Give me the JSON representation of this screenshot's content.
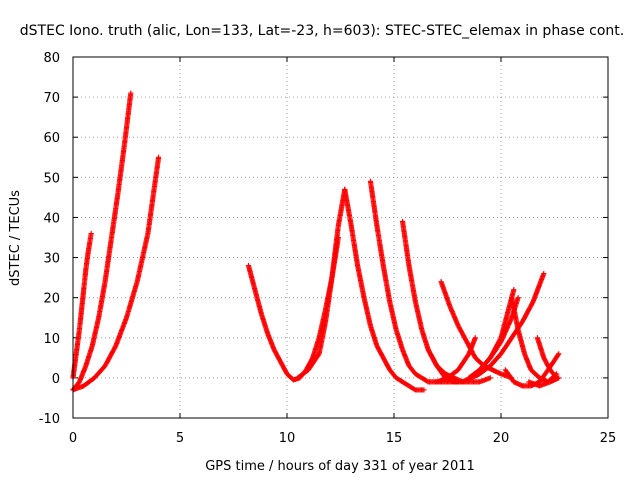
{
  "chart_data": {
    "type": "scatter",
    "title": "dSTEC Iono. truth (alic, Lon=133, Lat=-23, h=603): STEC-STEC_elemax in phase cont.",
    "xlabel": "GPS time / hours of day 331 of year 2011",
    "ylabel": "dSTEC  / TECUs",
    "xlim": [
      0,
      25
    ],
    "ylim": [
      -10,
      80
    ],
    "xticks": [
      0,
      5,
      10,
      15,
      20,
      25
    ],
    "yticks": [
      -10,
      0,
      10,
      20,
      30,
      40,
      50,
      60,
      70,
      80
    ],
    "grid": true,
    "marker": "+",
    "color": "#ff0000",
    "arcs": [
      {
        "x": [
          0.0,
          0.1,
          0.2,
          0.3,
          0.4,
          0.5,
          0.6,
          0.7,
          0.85
        ],
        "y": [
          0,
          4,
          8,
          12,
          17,
          22,
          27,
          31,
          36
        ]
      },
      {
        "x": [
          0.0,
          0.3,
          0.6,
          0.9,
          1.2,
          1.5,
          1.8,
          2.1,
          2.4,
          2.7
        ],
        "y": [
          -3,
          -1,
          3,
          8,
          15,
          24,
          35,
          46,
          58,
          71
        ]
      },
      {
        "x": [
          0.0,
          0.5,
          1.0,
          1.5,
          2.0,
          2.5,
          3.0,
          3.5,
          4.0
        ],
        "y": [
          -3,
          -2,
          0,
          3,
          8,
          15,
          24,
          36,
          55
        ]
      },
      {
        "x": [
          8.2,
          8.5,
          8.8,
          9.1,
          9.4,
          9.7,
          10.0,
          10.3,
          10.6,
          10.9,
          11.2,
          11.5,
          11.8,
          12.1,
          12.4
        ],
        "y": [
          28,
          22,
          16,
          11,
          7,
          4,
          1,
          -0.5,
          0,
          2,
          5,
          10,
          17,
          25,
          35
        ]
      },
      {
        "x": [
          10.5,
          11.0,
          11.5,
          11.8,
          12.1,
          12.4,
          12.7
        ],
        "y": [
          0,
          2,
          6,
          14,
          25,
          38,
          47
        ]
      },
      {
        "x": [
          12.7,
          13.0,
          13.3,
          13.6,
          13.9,
          14.2,
          14.5,
          14.8,
          15.1,
          15.4,
          15.7,
          16.0,
          16.4
        ],
        "y": [
          47,
          38,
          28,
          20,
          13,
          8,
          5,
          2,
          0,
          -1,
          -2,
          -3,
          -3
        ]
      },
      {
        "x": [
          13.9,
          14.2,
          14.5,
          14.8,
          15.1,
          15.4,
          15.7,
          16.0,
          16.3,
          16.6,
          17.0,
          17.5,
          18.0
        ],
        "y": [
          49,
          38,
          28,
          19,
          12,
          7,
          3,
          1,
          0,
          -1,
          -1,
          -1,
          -1
        ]
      },
      {
        "x": [
          15.4,
          15.7,
          16.0,
          16.3,
          16.6,
          17.0,
          17.4,
          17.8,
          18.2,
          18.6,
          19.0,
          19.5
        ],
        "y": [
          39,
          28,
          19,
          12,
          7,
          3,
          1,
          0,
          -1,
          -1,
          -1,
          0
        ]
      },
      {
        "x": [
          16.6,
          17.0,
          17.4,
          17.8,
          18.2,
          18.6,
          19.0,
          19.5,
          20.0,
          20.5,
          21.0,
          21.5,
          22.0
        ],
        "y": [
          7,
          3,
          0,
          -1,
          -1,
          0,
          1,
          3,
          6,
          10,
          14,
          19,
          26
        ]
      },
      {
        "x": [
          17.2,
          17.6,
          18.0,
          18.4,
          18.8,
          19.2,
          19.6,
          20.0,
          20.5
        ],
        "y": [
          24,
          18,
          13,
          9,
          5,
          3,
          2,
          1,
          0
        ]
      },
      {
        "x": [
          17.0,
          17.5,
          18.0,
          18.5,
          18.8
        ],
        "y": [
          -1,
          0,
          2,
          6,
          10
        ]
      },
      {
        "x": [
          18.5,
          19.0,
          19.5,
          20.0,
          20.3,
          20.6
        ],
        "y": [
          0,
          2,
          5,
          10,
          16,
          22
        ]
      },
      {
        "x": [
          19.0,
          19.5,
          20.0,
          20.5,
          20.8
        ],
        "y": [
          2,
          5,
          9,
          15,
          20
        ]
      },
      {
        "x": [
          20.5,
          20.8,
          21.1,
          21.4,
          21.8,
          22.2,
          22.6
        ],
        "y": [
          20,
          12,
          6,
          2,
          0,
          -1,
          1
        ]
      },
      {
        "x": [
          20.2,
          20.6,
          21.0,
          21.4,
          21.8,
          22.2,
          22.7
        ],
        "y": [
          2,
          -1,
          -2,
          -2,
          -1,
          2,
          6
        ]
      },
      {
        "x": [
          21.7,
          22.0,
          22.3,
          22.6
        ],
        "y": [
          10,
          5,
          2,
          0
        ]
      },
      {
        "x": [
          21.3,
          21.8,
          22.3,
          22.7
        ],
        "y": [
          -1,
          -2,
          -1,
          0
        ]
      }
    ]
  }
}
